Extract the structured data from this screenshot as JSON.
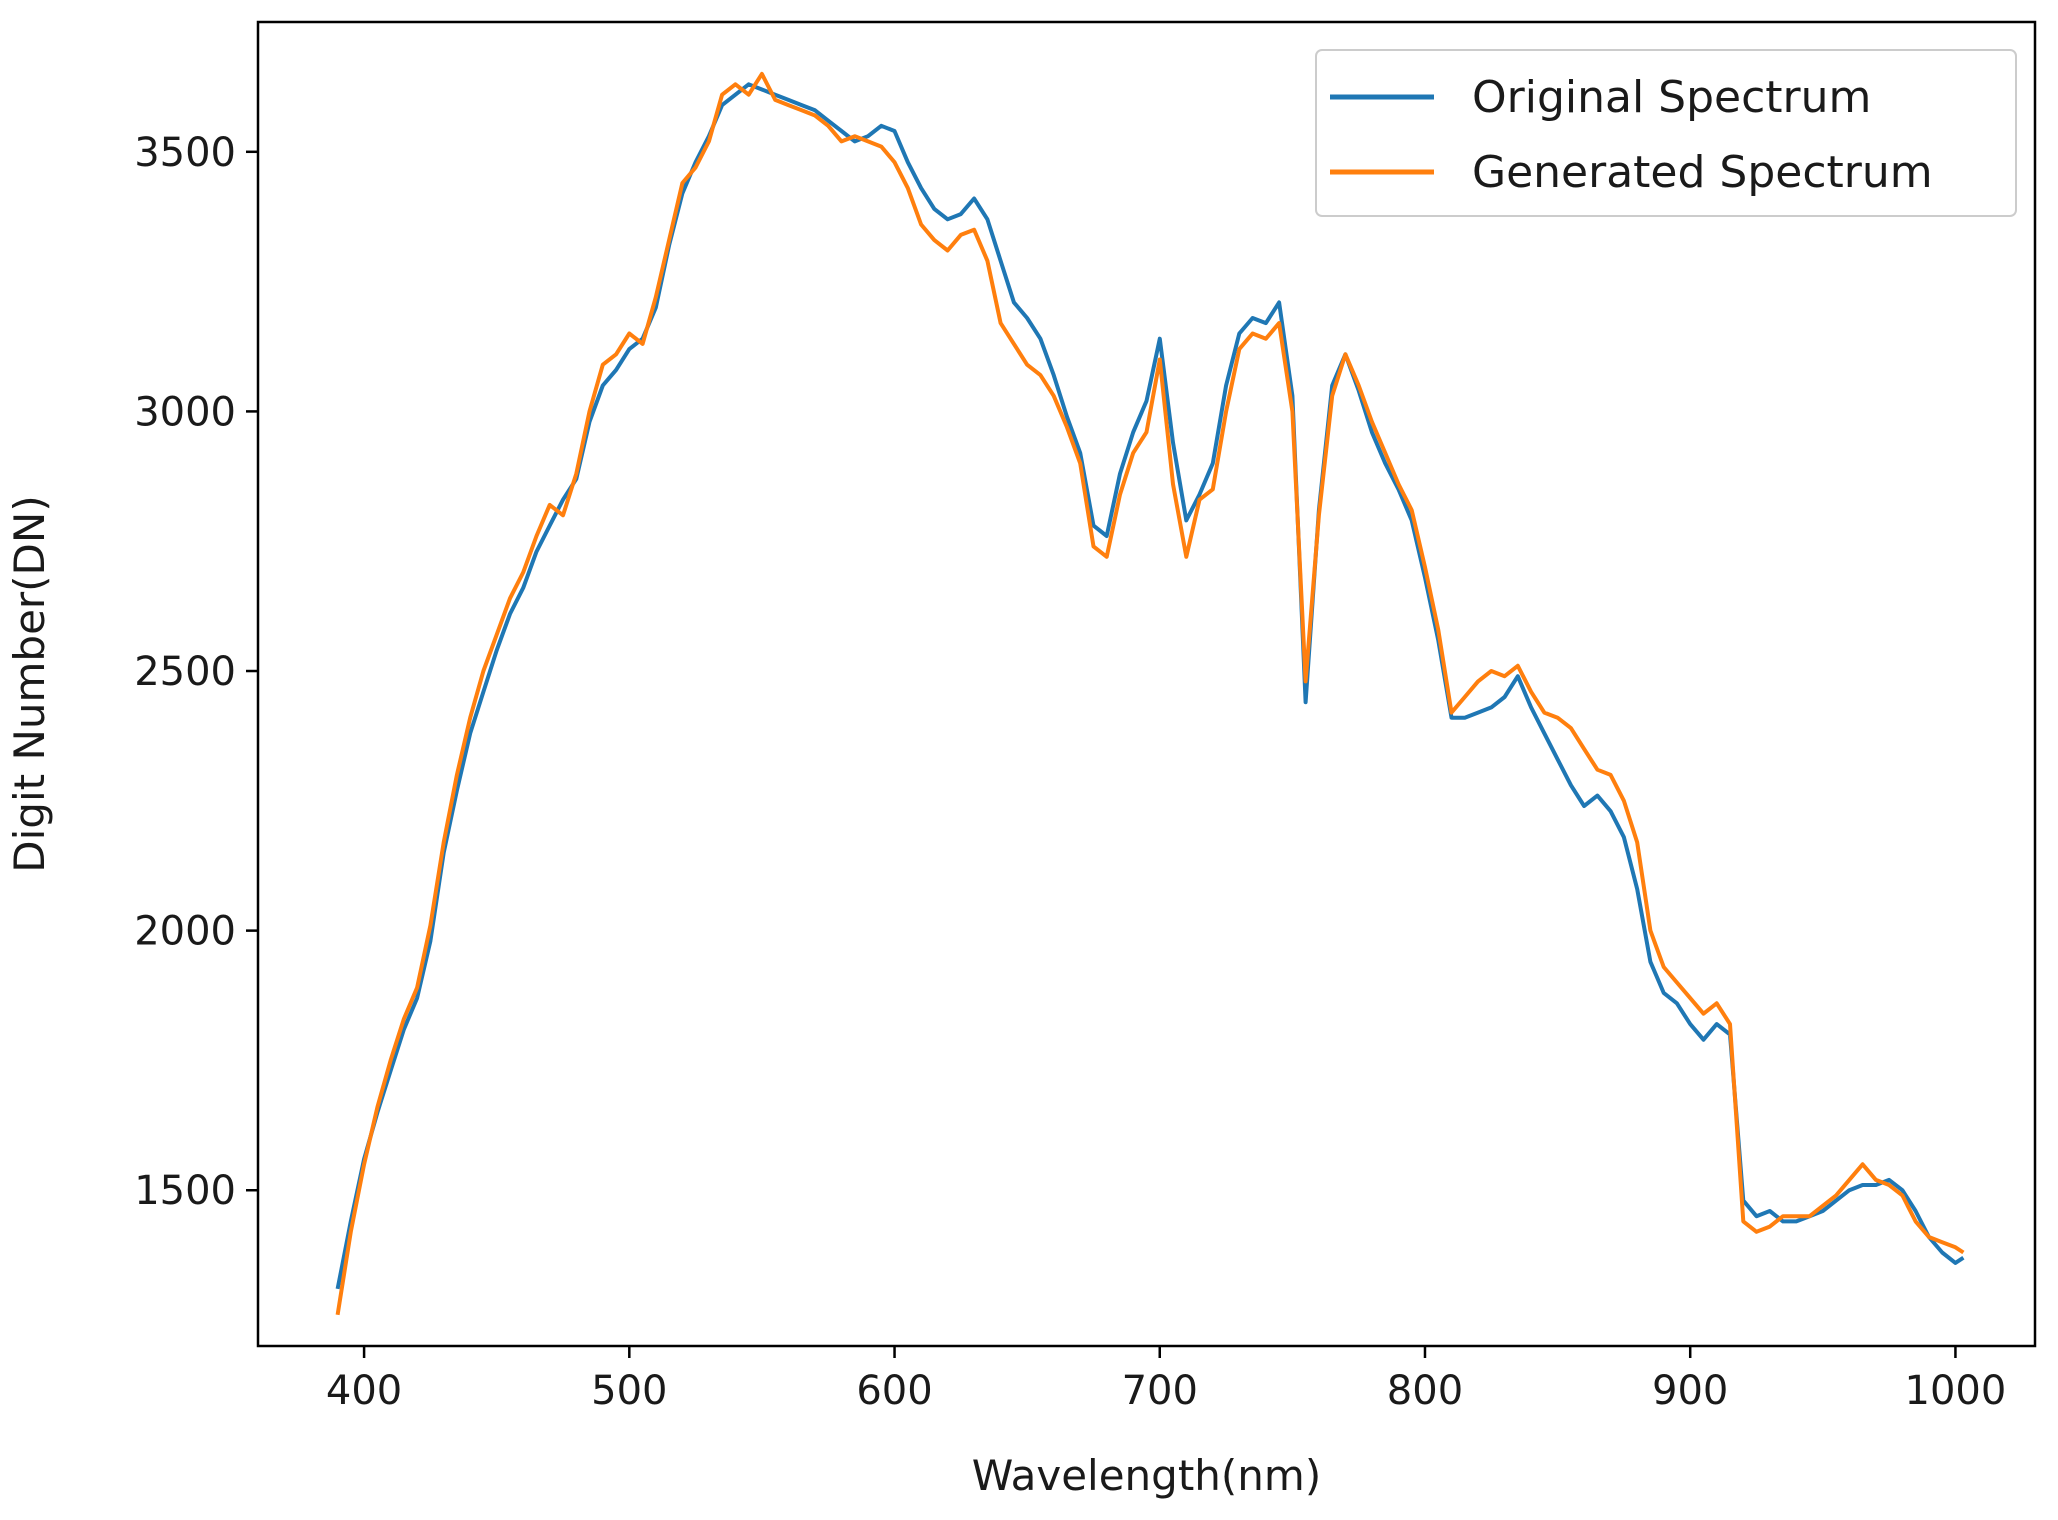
{
  "chart_data": {
    "type": "line",
    "title": "",
    "xlabel": "Wavelength(nm)",
    "ylabel": "Digit Number(DN)",
    "xlim": [
      360,
      1030
    ],
    "ylim": [
      1200,
      3750
    ],
    "xticks": [
      400,
      500,
      600,
      700,
      800,
      900,
      1000
    ],
    "yticks": [
      1500,
      2000,
      2500,
      3000,
      3500
    ],
    "grid": false,
    "legend": "top-right",
    "series": [
      {
        "name": "Original Spectrum",
        "color": "#1f77b4",
        "x": [
          390,
          395,
          400,
          405,
          410,
          415,
          420,
          425,
          430,
          435,
          440,
          445,
          450,
          455,
          460,
          465,
          470,
          475,
          480,
          485,
          490,
          495,
          500,
          505,
          510,
          515,
          520,
          525,
          530,
          535,
          540,
          545,
          550,
          555,
          560,
          565,
          570,
          575,
          580,
          585,
          590,
          595,
          600,
          605,
          610,
          615,
          620,
          625,
          630,
          635,
          640,
          645,
          650,
          655,
          660,
          665,
          670,
          675,
          680,
          685,
          690,
          695,
          700,
          705,
          710,
          715,
          720,
          725,
          730,
          735,
          740,
          745,
          750,
          755,
          760,
          765,
          770,
          775,
          780,
          785,
          790,
          795,
          800,
          805,
          810,
          815,
          820,
          825,
          830,
          835,
          840,
          845,
          850,
          855,
          860,
          865,
          870,
          875,
          880,
          885,
          890,
          895,
          900,
          905,
          910,
          915,
          920,
          925,
          930,
          935,
          940,
          945,
          950,
          955,
          960,
          965,
          970,
          975,
          980,
          985,
          990,
          995,
          1000,
          1003
        ],
        "values": [
          1310,
          1440,
          1560,
          1650,
          1730,
          1810,
          1870,
          1980,
          2150,
          2270,
          2380,
          2460,
          2540,
          2610,
          2660,
          2730,
          2780,
          2830,
          2870,
          2980,
          3050,
          3080,
          3120,
          3140,
          3200,
          3320,
          3420,
          3480,
          3530,
          3590,
          3610,
          3630,
          3620,
          3610,
          3600,
          3590,
          3580,
          3560,
          3540,
          3520,
          3530,
          3550,
          3540,
          3480,
          3430,
          3390,
          3370,
          3380,
          3410,
          3370,
          3290,
          3210,
          3180,
          3140,
          3070,
          2990,
          2920,
          2780,
          2760,
          2880,
          2960,
          3020,
          3140,
          2940,
          2790,
          2840,
          2900,
          3050,
          3150,
          3180,
          3170,
          3210,
          3030,
          2440,
          2810,
          3050,
          3110,
          3040,
          2960,
          2900,
          2850,
          2790,
          2680,
          2560,
          2410,
          2410,
          2420,
          2430,
          2450,
          2490,
          2430,
          2380,
          2330,
          2280,
          2240,
          2260,
          2230,
          2180,
          2080,
          1940,
          1880,
          1860,
          1820,
          1790,
          1820,
          1800,
          1480,
          1450,
          1460,
          1440,
          1440,
          1450,
          1460,
          1480,
          1500,
          1510,
          1510,
          1520,
          1500,
          1460,
          1410,
          1380,
          1360,
          1370
        ]
      },
      {
        "name": "Generated Spectrum",
        "color": "#ff7f0e",
        "x": [
          390,
          395,
          400,
          405,
          410,
          415,
          420,
          425,
          430,
          435,
          440,
          445,
          450,
          455,
          460,
          465,
          470,
          475,
          480,
          485,
          490,
          495,
          500,
          505,
          510,
          515,
          520,
          525,
          530,
          535,
          540,
          545,
          550,
          555,
          560,
          565,
          570,
          575,
          580,
          585,
          590,
          595,
          600,
          605,
          610,
          615,
          620,
          625,
          630,
          635,
          640,
          645,
          650,
          655,
          660,
          665,
          670,
          675,
          680,
          685,
          690,
          695,
          700,
          705,
          710,
          715,
          720,
          725,
          730,
          735,
          740,
          745,
          750,
          755,
          760,
          765,
          770,
          775,
          780,
          785,
          790,
          795,
          800,
          805,
          810,
          815,
          820,
          825,
          830,
          835,
          840,
          845,
          850,
          855,
          860,
          865,
          870,
          875,
          880,
          885,
          890,
          895,
          900,
          905,
          910,
          915,
          920,
          925,
          930,
          935,
          940,
          945,
          950,
          955,
          960,
          965,
          970,
          975,
          980,
          985,
          990,
          995,
          1000,
          1003
        ],
        "values": [
          1260,
          1420,
          1550,
          1660,
          1750,
          1830,
          1890,
          2010,
          2170,
          2300,
          2410,
          2500,
          2570,
          2640,
          2690,
          2760,
          2820,
          2800,
          2880,
          3000,
          3090,
          3110,
          3150,
          3130,
          3220,
          3330,
          3440,
          3470,
          3520,
          3610,
          3630,
          3610,
          3650,
          3600,
          3590,
          3580,
          3570,
          3550,
          3520,
          3530,
          3520,
          3510,
          3480,
          3430,
          3360,
          3330,
          3310,
          3340,
          3350,
          3290,
          3170,
          3130,
          3090,
          3070,
          3030,
          2970,
          2900,
          2740,
          2720,
          2840,
          2920,
          2960,
          3100,
          2860,
          2720,
          2830,
          2850,
          3000,
          3120,
          3150,
          3140,
          3170,
          3000,
          2480,
          2800,
          3030,
          3110,
          3050,
          2980,
          2920,
          2860,
          2810,
          2700,
          2580,
          2420,
          2450,
          2480,
          2500,
          2490,
          2510,
          2460,
          2420,
          2410,
          2390,
          2350,
          2310,
          2300,
          2250,
          2170,
          2000,
          1930,
          1900,
          1870,
          1840,
          1860,
          1820,
          1440,
          1420,
          1430,
          1450,
          1450,
          1450,
          1470,
          1490,
          1520,
          1550,
          1520,
          1510,
          1490,
          1440,
          1410,
          1400,
          1390,
          1380
        ]
      }
    ]
  }
}
